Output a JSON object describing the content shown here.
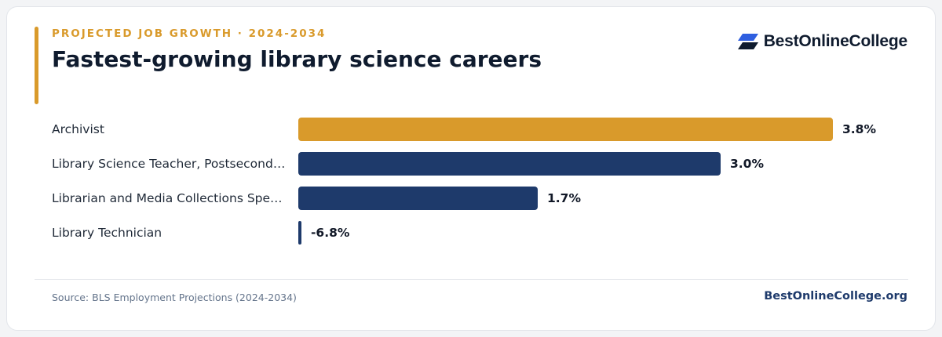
{
  "header": {
    "eyebrow": "PROJECTED JOB GROWTH · 2024-2034",
    "title": "Fastest-growing library science careers"
  },
  "logo": {
    "text": "BestOnlineCollege",
    "icon": "stacked-parallelogram-logo-icon"
  },
  "colors": {
    "highlight": "#d99a2b",
    "bar": "#1e3a6b",
    "accent": "#d99a2b"
  },
  "chart_data": {
    "type": "bar",
    "orientation": "horizontal",
    "categories": [
      "Archivist",
      "Library Science Teacher, Postsecondary",
      "Librarian and Media Collections Specialist",
      "Library Technician"
    ],
    "values": [
      3.8,
      3.0,
      1.7,
      -6.8
    ],
    "value_labels": [
      "3.8%",
      "3.0%",
      "1.7%",
      "-6.8%"
    ],
    "highlight_index": 0,
    "unit": "%",
    "xlim": [
      0,
      3.8
    ],
    "grid": false,
    "legend": "none"
  },
  "footer": {
    "source": "Source: BLS Employment Projections (2024-2034)",
    "site": "BestOnlineCollege.org"
  }
}
